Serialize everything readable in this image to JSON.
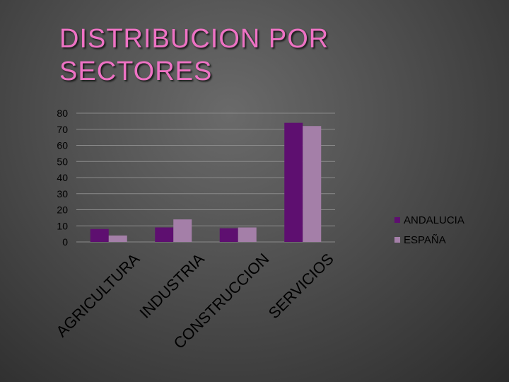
{
  "title_line1": "DISTRIBUCION POR",
  "title_line2": "SECTORES",
  "colors": {
    "title": "#ee72c4",
    "andalucia": "#5e0f70",
    "espana": "#a47fa8",
    "grid": "#8a8a8a"
  },
  "chart_data": {
    "type": "bar",
    "categories": [
      "AGRICULTURA",
      "INDUSTRIA",
      "CONSTRUCCION",
      "SERVICIOS"
    ],
    "series": [
      {
        "name": "ANDALUCIA",
        "values": [
          8,
          9,
          8.5,
          74
        ]
      },
      {
        "name": "ESPAÑA",
        "values": [
          4,
          14,
          9,
          72
        ]
      }
    ],
    "ylim": [
      0,
      80
    ],
    "yticks": [
      0,
      10,
      20,
      30,
      40,
      50,
      60,
      70,
      80
    ],
    "legend": "right",
    "grid": true
  }
}
